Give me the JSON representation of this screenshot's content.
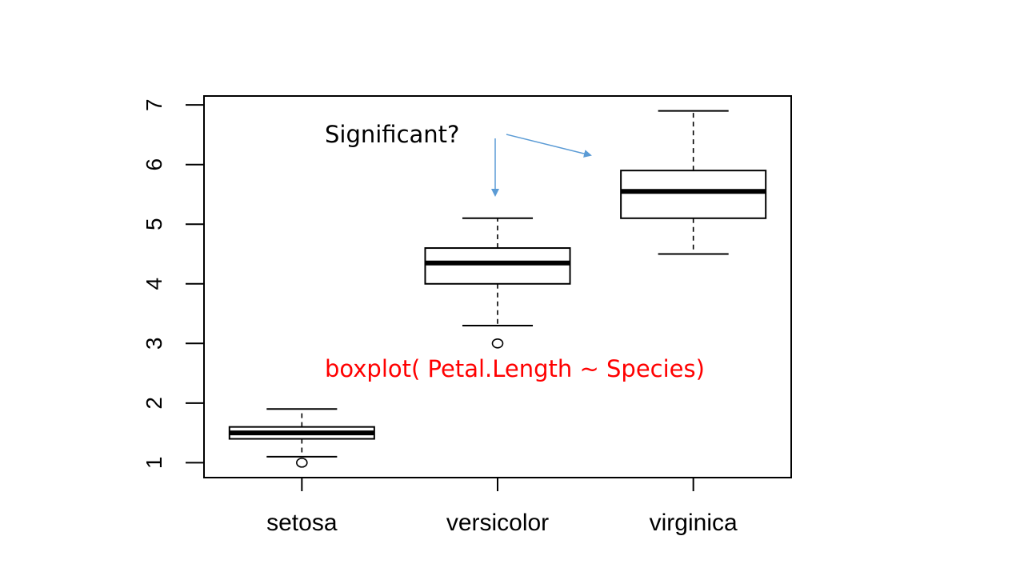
{
  "chart_data": {
    "type": "boxplot",
    "title": "",
    "xlabel": "",
    "ylabel": "",
    "categories": [
      "setosa",
      "versicolor",
      "virginica"
    ],
    "boxes": [
      {
        "category": "setosa",
        "whisker_low": 1.1,
        "q1": 1.4,
        "median": 1.5,
        "q3": 1.6,
        "whisker_high": 1.9,
        "outliers": [
          1.0
        ]
      },
      {
        "category": "versicolor",
        "whisker_low": 3.3,
        "q1": 4.0,
        "median": 4.35,
        "q3": 4.6,
        "whisker_high": 5.1,
        "outliers": [
          3.0
        ]
      },
      {
        "category": "virginica",
        "whisker_low": 4.5,
        "q1": 5.1,
        "median": 5.55,
        "q3": 5.9,
        "whisker_high": 6.9,
        "outliers": []
      }
    ],
    "yticks": [
      "1",
      "2",
      "3",
      "4",
      "5",
      "6",
      "7"
    ],
    "ylim": [
      0.75,
      7.15
    ],
    "grid": false,
    "annotations": {
      "question": "Significant?",
      "code": "boxplot( Petal.Length ~ Species)"
    },
    "colors": {
      "axis": "#000000",
      "box": "#000000",
      "arrow": "#5b9bd5",
      "code_text": "#ff0000",
      "question_text": "#000000"
    }
  }
}
